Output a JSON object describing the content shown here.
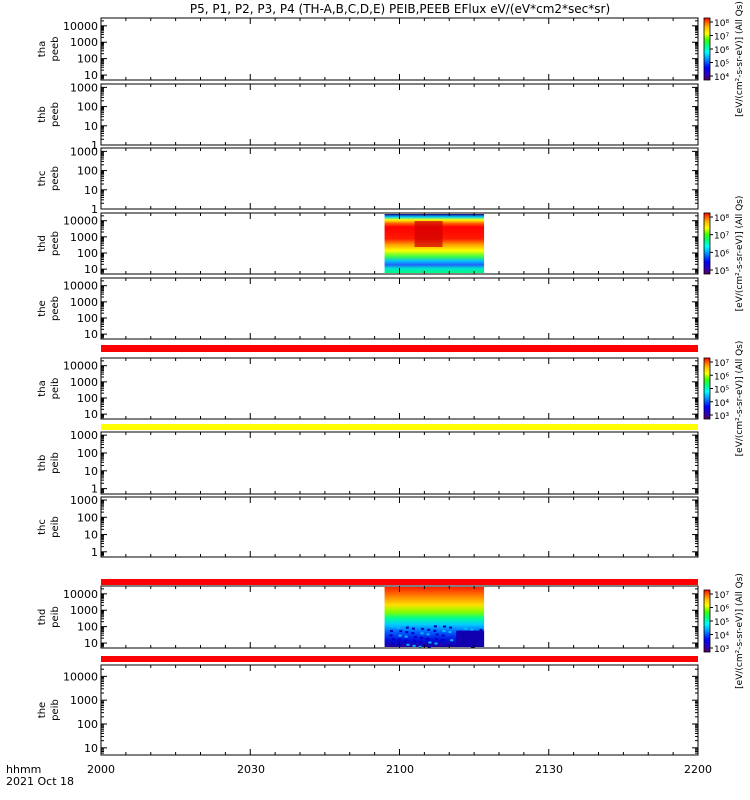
{
  "chart_data": {
    "type": "heatmap",
    "title": "P5, P1, P2, P3, P4 (TH-A,B,C,D,E) PEIB,PEEB EFlux eV/(eV*cm2*sec*sr)",
    "x_unit_label": "hhmm",
    "date_label": "2021 Oct 18",
    "x_ticks": [
      "2000",
      "2030",
      "2100",
      "2130",
      "2200"
    ],
    "x_range_minutes_since_2000": [
      0,
      120
    ],
    "y_scale": "log",
    "colorscale": [
      "#5a005a",
      "#2800c8",
      "#0000ff",
      "#00a0ff",
      "#00ffff",
      "#00ff80",
      "#40ff00",
      "#ffff00",
      "#ffc000",
      "#ff6000",
      "#ff0000"
    ],
    "panels": [
      {
        "label_line1": "tha",
        "label_line2": "peeb",
        "y_ticks": [
          "10",
          "100",
          "1000",
          "10000"
        ],
        "ylim": [
          5,
          30000
        ]
      },
      {
        "label_line1": "thb",
        "label_line2": "peeb",
        "y_ticks": [
          "1",
          "10",
          "100",
          "1000"
        ],
        "ylim": [
          1,
          1500
        ]
      },
      {
        "label_line1": "thc",
        "label_line2": "peeb",
        "y_ticks": [
          "1",
          "10",
          "100",
          "1000"
        ],
        "ylim": [
          1,
          1500
        ]
      },
      {
        "label_line1": "thd",
        "label_line2": "peeb",
        "y_ticks": [
          "10",
          "100",
          "1000",
          "10000"
        ],
        "ylim": [
          5,
          30000
        ],
        "data_window": [
          "2057",
          "2117"
        ]
      },
      {
        "label_line1": "the",
        "label_line2": "peeb",
        "y_ticks": [
          "10",
          "100",
          "1000",
          "10000"
        ],
        "ylim": [
          5,
          30000
        ]
      },
      {
        "label_line1": "tha",
        "label_line2": "peib",
        "y_ticks": [
          "10",
          "100",
          "1000",
          "10000"
        ],
        "ylim": [
          5,
          30000
        ]
      },
      {
        "label_line1": "thb",
        "label_line2": "peib",
        "y_ticks": [
          "1",
          "10",
          "100",
          "1000"
        ],
        "ylim": [
          0.5,
          1500
        ]
      },
      {
        "label_line1": "thc",
        "label_line2": "peib",
        "y_ticks": [
          "1",
          "10",
          "100",
          "1000"
        ],
        "ylim": [
          0.5,
          1500
        ]
      },
      {
        "label_line1": "thd",
        "label_line2": "peib",
        "y_ticks": [
          "10",
          "100",
          "1000",
          "10000"
        ],
        "ylim": [
          5,
          30000
        ],
        "data_window": [
          "2057",
          "2117"
        ]
      },
      {
        "label_line1": "the",
        "label_line2": "peib",
        "y_ticks": [
          "10",
          "100",
          "1000",
          "10000"
        ],
        "ylim": [
          5,
          30000
        ]
      }
    ],
    "colorbars": [
      {
        "ticks": [
          "10⁸",
          "10⁷",
          "10⁶",
          "10⁵",
          "10⁴"
        ],
        "label": "[eV/(cm²-s-sr-eV)] (All Qs)"
      },
      {
        "ticks": [
          "10⁸",
          "10⁷",
          "10⁶",
          "10⁵"
        ],
        "label": "[eV/(cm²-s-sr-eV)] (All Qs)"
      },
      {
        "ticks": [
          "10⁷",
          "10⁶",
          "10⁵",
          "10⁴",
          "10³"
        ],
        "label": "[eV/(cm²-s-sr-eV)] (All Qs)"
      },
      {
        "ticks": [
          "10⁷",
          "10⁶",
          "10⁵",
          "10⁴",
          "10³"
        ],
        "label": "[eV/(cm²-s-sr-eV)] (All Qs)"
      }
    ]
  }
}
